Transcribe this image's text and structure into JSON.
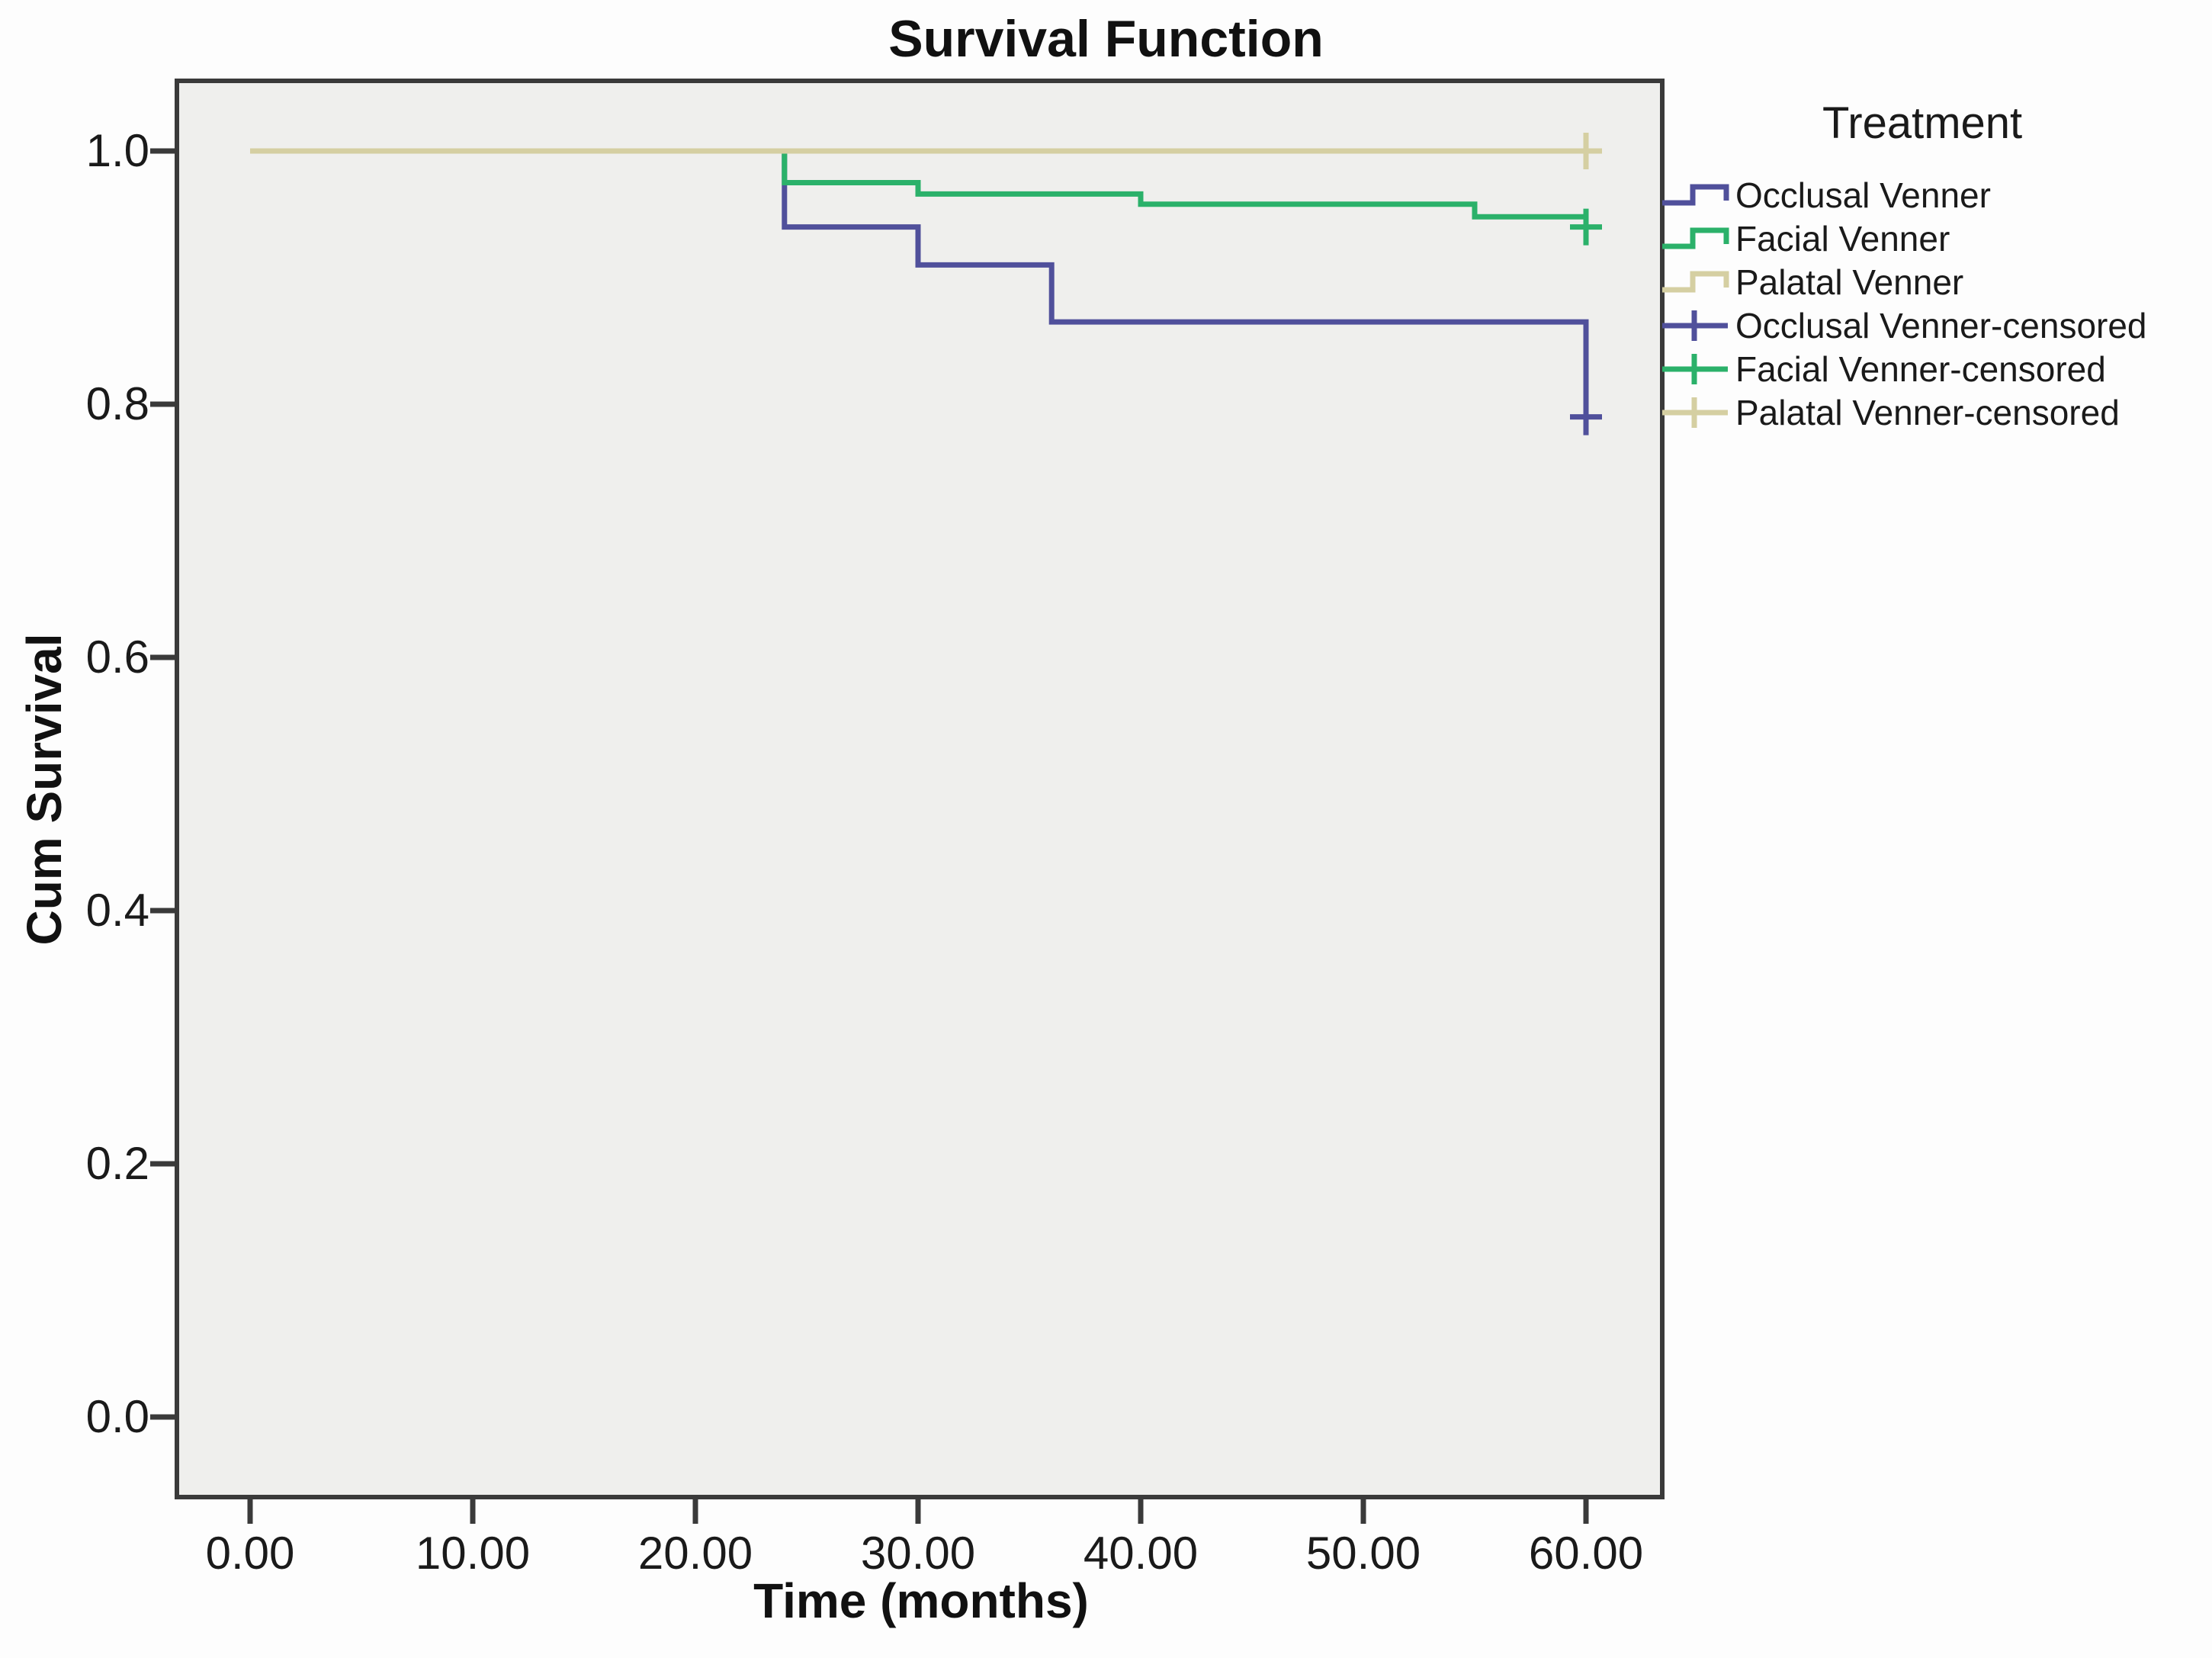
{
  "figure": {
    "title": "Survival Function"
  },
  "axes": {
    "x": {
      "label": "Time (months)",
      "tick_labels": [
        "0.00",
        "10.00",
        "20.00",
        "30.00",
        "40.00",
        "50.00",
        "60.00"
      ],
      "tick_values": [
        0,
        10,
        20,
        30,
        40,
        50,
        60
      ]
    },
    "y": {
      "label": "Cum Survival",
      "tick_labels": [
        "0.0",
        "0.2",
        "0.4",
        "0.6",
        "0.8",
        "1.0"
      ],
      "tick_values": [
        0,
        0.2,
        0.4,
        0.6,
        0.8,
        1.0
      ]
    }
  },
  "legend": {
    "title": "Treatment",
    "items": [
      {
        "label": "Occlusal Venner",
        "symbol": "step-icon",
        "color": "#50509B"
      },
      {
        "label": "Facial Venner",
        "symbol": "step-icon",
        "color": "#2BB16A"
      },
      {
        "label": "Palatal Venner",
        "symbol": "step-icon",
        "color": "#D5CFA2"
      },
      {
        "label": "Occlusal Venner-censored",
        "symbol": "cross-icon",
        "color": "#50509B"
      },
      {
        "label": "Facial Venner-censored",
        "symbol": "cross-icon",
        "color": "#2BB16A"
      },
      {
        "label": "Palatal Venner-censored",
        "symbol": "cross-icon",
        "color": "#D5CFA2"
      }
    ]
  },
  "chart_data": {
    "type": "line",
    "subtype": "kaplan-meier-step",
    "title": "Survival Function",
    "xlabel": "Time (months)",
    "ylabel": "Cum Survival",
    "xlim": [
      0,
      60
    ],
    "ylim": [
      0.0,
      1.0
    ],
    "grid": false,
    "legend_position": "right",
    "series": [
      {
        "name": "Occlusal Venner",
        "color": "#50509B",
        "steps": [
          [
            0,
            1.0
          ],
          [
            24,
            1.0
          ],
          [
            24,
            0.94
          ],
          [
            30,
            0.94
          ],
          [
            30,
            0.91
          ],
          [
            36,
            0.91
          ],
          [
            36,
            0.865
          ],
          [
            60,
            0.865
          ],
          [
            60,
            0.79
          ]
        ],
        "censored": [
          [
            60,
            0.79
          ]
        ]
      },
      {
        "name": "Facial Venner",
        "color": "#2BB16A",
        "steps": [
          [
            0,
            1.0
          ],
          [
            24,
            1.0
          ],
          [
            24,
            0.975
          ],
          [
            30,
            0.975
          ],
          [
            30,
            0.966
          ],
          [
            40,
            0.966
          ],
          [
            40,
            0.958
          ],
          [
            55,
            0.958
          ],
          [
            55,
            0.948
          ],
          [
            60,
            0.948
          ],
          [
            60,
            0.94
          ]
        ],
        "censored": [
          [
            60,
            0.94
          ]
        ]
      },
      {
        "name": "Palatal Venner",
        "color": "#D5CFA2",
        "steps": [
          [
            0,
            1.0
          ],
          [
            60,
            1.0
          ]
        ],
        "censored": [
          [
            60,
            1.0
          ]
        ]
      }
    ]
  },
  "colors": {
    "plot_bg": "#EFEFED",
    "figure_bg": "#FDFDFD",
    "axis_border": "#3A3A3A",
    "text": "#1A1A1A"
  }
}
